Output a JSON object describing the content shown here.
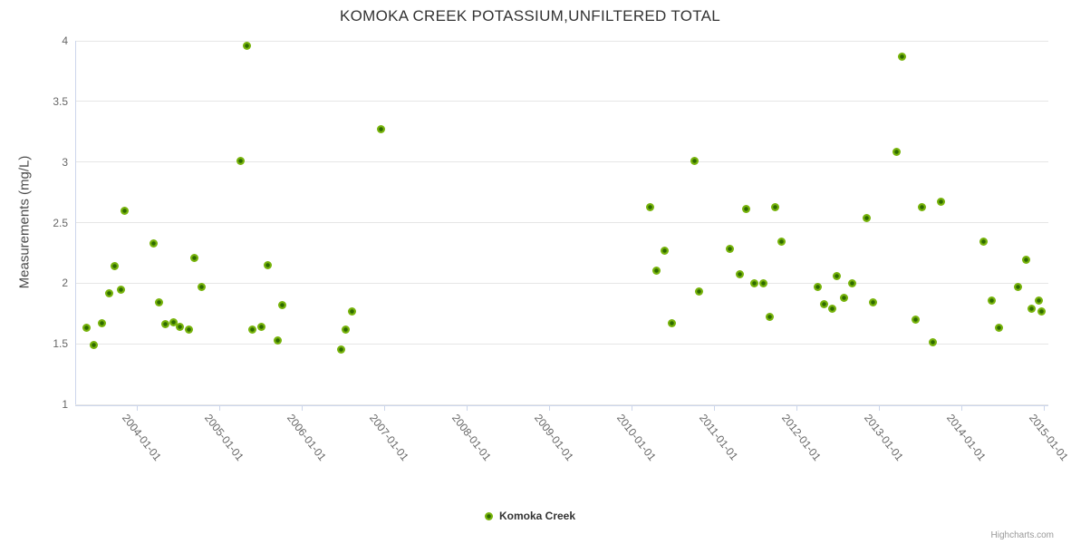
{
  "chart_data": {
    "type": "scatter",
    "title": "KOMOKA CREEK POTASSIUM,UNFILTERED TOTAL",
    "xlabel": "",
    "ylabel": "Measurements (mg/L)",
    "legend_position": "bottom-center",
    "grid": "horizontal-only",
    "ylim": [
      1,
      4
    ],
    "yticks": [
      1,
      1.5,
      2,
      2.5,
      3,
      3.5,
      4
    ],
    "ytick_labels": [
      "1",
      "1.5",
      "2",
      "2.5",
      "3",
      "3.5",
      "4"
    ],
    "xlim_year_decimal": [
      2003.25,
      2015.05
    ],
    "xticks": [
      {
        "year": 2004,
        "label": "2004-01-01"
      },
      {
        "year": 2005,
        "label": "2005-01-01"
      },
      {
        "year": 2006,
        "label": "2006-01-01"
      },
      {
        "year": 2007,
        "label": "2007-01-01"
      },
      {
        "year": 2008,
        "label": "2008-01-01"
      },
      {
        "year": 2009,
        "label": "2009-01-01"
      },
      {
        "year": 2010,
        "label": "2010-01-01"
      },
      {
        "year": 2011,
        "label": "2011-01-01"
      },
      {
        "year": 2012,
        "label": "2012-01-01"
      },
      {
        "year": 2013,
        "label": "2013-01-01"
      },
      {
        "year": 2014,
        "label": "2014-01-01"
      },
      {
        "year": 2015,
        "label": "2015-01-01"
      }
    ],
    "series": [
      {
        "name": "Komoka Creek",
        "marker_fill": "#77b30b",
        "marker_center": "#2e6a00",
        "points_year_value_mgL": [
          [
            2003.39,
            1.63
          ],
          [
            2003.48,
            1.49
          ],
          [
            2003.57,
            1.67
          ],
          [
            2003.66,
            1.92
          ],
          [
            2003.73,
            2.14
          ],
          [
            2003.81,
            1.95
          ],
          [
            2003.85,
            2.6
          ],
          [
            2004.2,
            2.33
          ],
          [
            2004.27,
            1.84
          ],
          [
            2004.34,
            1.66
          ],
          [
            2004.44,
            1.68
          ],
          [
            2004.52,
            1.64
          ],
          [
            2004.63,
            1.62
          ],
          [
            2004.7,
            2.21
          ],
          [
            2004.78,
            1.97
          ],
          [
            2005.25,
            3.01
          ],
          [
            2005.33,
            3.96
          ],
          [
            2005.4,
            1.62
          ],
          [
            2005.51,
            1.64
          ],
          [
            2005.58,
            2.15
          ],
          [
            2005.71,
            1.53
          ],
          [
            2005.76,
            1.82
          ],
          [
            2006.47,
            1.45
          ],
          [
            2006.53,
            1.62
          ],
          [
            2006.61,
            1.77
          ],
          [
            2006.96,
            3.27
          ],
          [
            2010.22,
            2.63
          ],
          [
            2010.3,
            2.1
          ],
          [
            2010.4,
            2.27
          ],
          [
            2010.48,
            1.67
          ],
          [
            2010.76,
            3.01
          ],
          [
            2010.81,
            1.93
          ],
          [
            2011.19,
            2.28
          ],
          [
            2011.31,
            2.07
          ],
          [
            2011.39,
            2.61
          ],
          [
            2011.48,
            2.0
          ],
          [
            2011.59,
            2.0
          ],
          [
            2011.67,
            1.72
          ],
          [
            2011.74,
            2.63
          ],
          [
            2011.81,
            2.34
          ],
          [
            2012.25,
            1.97
          ],
          [
            2012.33,
            1.83
          ],
          [
            2012.43,
            1.79
          ],
          [
            2012.49,
            2.06
          ],
          [
            2012.57,
            1.88
          ],
          [
            2012.67,
            2.0
          ],
          [
            2012.85,
            2.54
          ],
          [
            2012.92,
            1.84
          ],
          [
            2013.21,
            3.08
          ],
          [
            2013.28,
            3.87
          ],
          [
            2013.44,
            1.7
          ],
          [
            2013.52,
            2.63
          ],
          [
            2013.65,
            1.51
          ],
          [
            2013.75,
            2.67
          ],
          [
            2014.26,
            2.34
          ],
          [
            2014.36,
            1.86
          ],
          [
            2014.45,
            1.63
          ],
          [
            2014.68,
            1.97
          ],
          [
            2014.78,
            2.19
          ],
          [
            2014.85,
            1.79
          ],
          [
            2014.93,
            1.86
          ],
          [
            2014.97,
            1.77
          ]
        ]
      }
    ],
    "colors": {
      "title": "#333333",
      "axis_labels": "#666666",
      "gridline": "#e6e6e6",
      "axis_line": "#ccd6eb",
      "marker_fill": "#77b30b",
      "marker_center": "#2e6a00"
    },
    "credit": "Highcharts.com"
  },
  "legend": {
    "items": [
      {
        "label": "Komoka Creek"
      }
    ]
  }
}
